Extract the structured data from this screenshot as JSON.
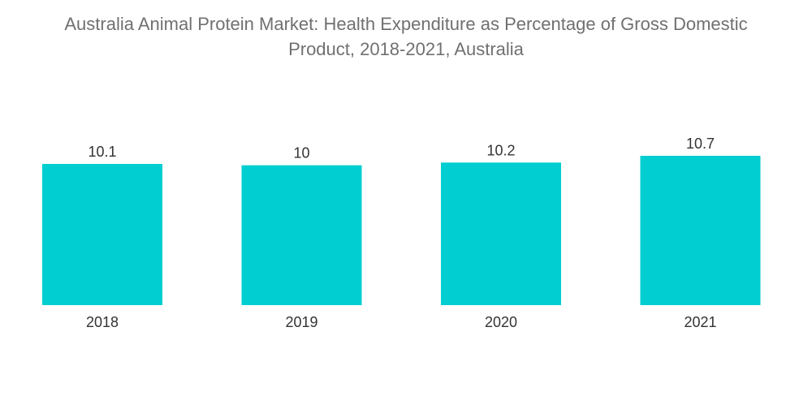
{
  "chart_data": {
    "type": "bar",
    "title_lines": [
      "Australia Animal Protein Market: Health Expenditure as Percentage of Gross Domestic",
      "Product, 2018-2021, Australia"
    ],
    "categories": [
      "2018",
      "2019",
      "2020",
      "2021"
    ],
    "values": [
      10.1,
      10,
      10.2,
      10.7
    ],
    "value_labels": [
      "10.1",
      "10",
      "10.2",
      "10.7"
    ],
    "bar_color": "#00CED1",
    "xlabel": "",
    "ylabel": "",
    "grid": false
  }
}
